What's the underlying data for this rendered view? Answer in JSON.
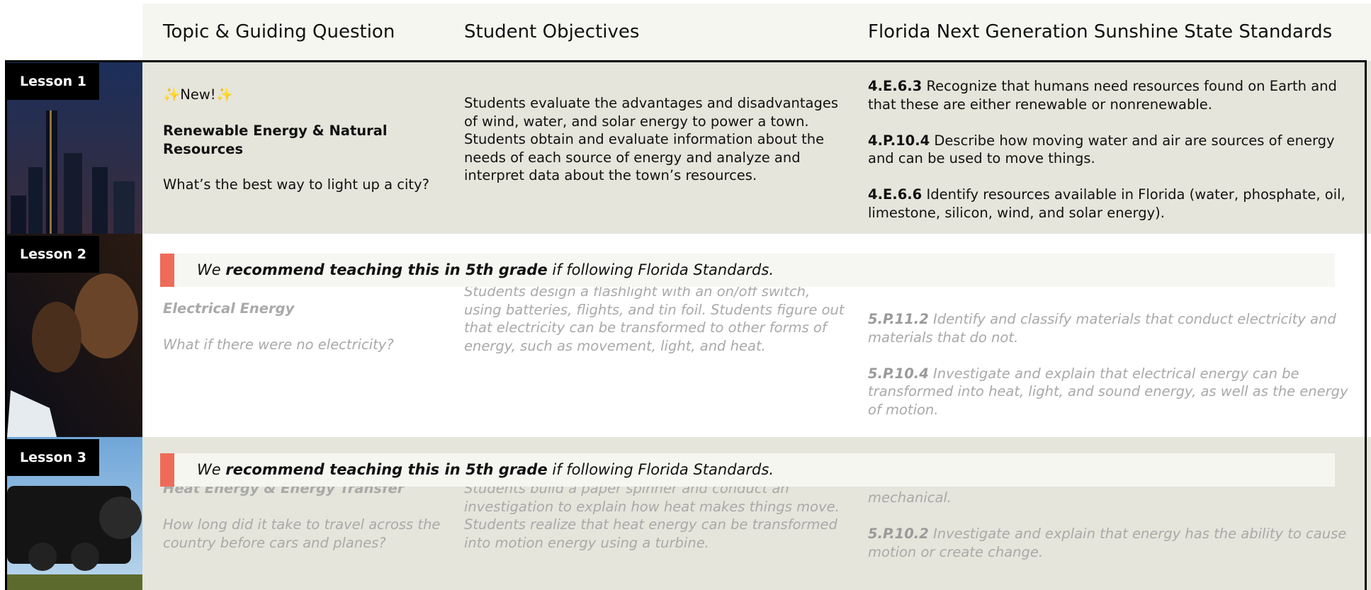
{
  "header": {
    "columns": [
      "Topic & Guiding Question",
      "Student Objectives",
      "Florida Next Generation Sunshine State Standards"
    ]
  },
  "lessons": [
    {
      "label": "Lesson 1",
      "badge": "✨New!✨",
      "title": "Renewable Energy & Natural Resources",
      "question": "What’s the best way to light up a city?",
      "objectives": "Students evaluate the advantages and disadvantages of wind, water, and solar energy to power a town. Students obtain and evaluate information about the needs of each source of energy and analyze and interpret data about the town’s resources.",
      "standards": [
        {
          "code": "4.E.6.3",
          "text": "Recognize that humans need resources found on Earth and that these are either renewable or nonrenewable."
        },
        {
          "code": "4.P.10.4",
          "text": "Describe how moving water and air are sources of energy and can be used to move things."
        },
        {
          "code": "4.E.6.6",
          "text": "Identify resources available in Florida (water, phosphate, oil, limestone, silicon, wind, and solar energy)."
        }
      ]
    },
    {
      "label": "Lesson 2",
      "title": "Electrical Energy",
      "question": "What if there were no electricity?",
      "objectives": "Students design a flashlight with an on/off switch, using batteries, flights, and tin foil. Students figure out that electricity can be transformed to other forms of energy, such as movement, light, and heat.",
      "standards": [
        {
          "code": "5.P.11.2",
          "text": "Identify and classify materials that conduct electricity and materials that do not."
        },
        {
          "code": "5.P.10.4",
          "text": "Investigate and explain that electrical energy can be transformed into heat, light, and sound energy, as well as the energy of motion."
        }
      ],
      "banner": {
        "prefix": "We",
        "emphasis": "recommend teaching this in 5th grade",
        "suffix": "if following Florida Standards."
      }
    },
    {
      "label": "Lesson 3",
      "title": "Heat Energy & Energy Transfer",
      "question": "How long did it take to travel across the country before cars and planes?",
      "objectives": "Students build a paper spinner and conduct an investigation to explain how heat makes things move. Students realize that heat energy can be transformed into motion energy using a turbine.",
      "standards": [
        {
          "text": "mechanical."
        },
        {
          "code": "5.P.10.2",
          "text": "Investigate and explain that energy has the ability to cause motion or create change."
        }
      ],
      "banner": {
        "prefix": "We",
        "emphasis": "recommend teaching this in 5th grade",
        "suffix": "if following Florida Standards."
      }
    }
  ]
}
